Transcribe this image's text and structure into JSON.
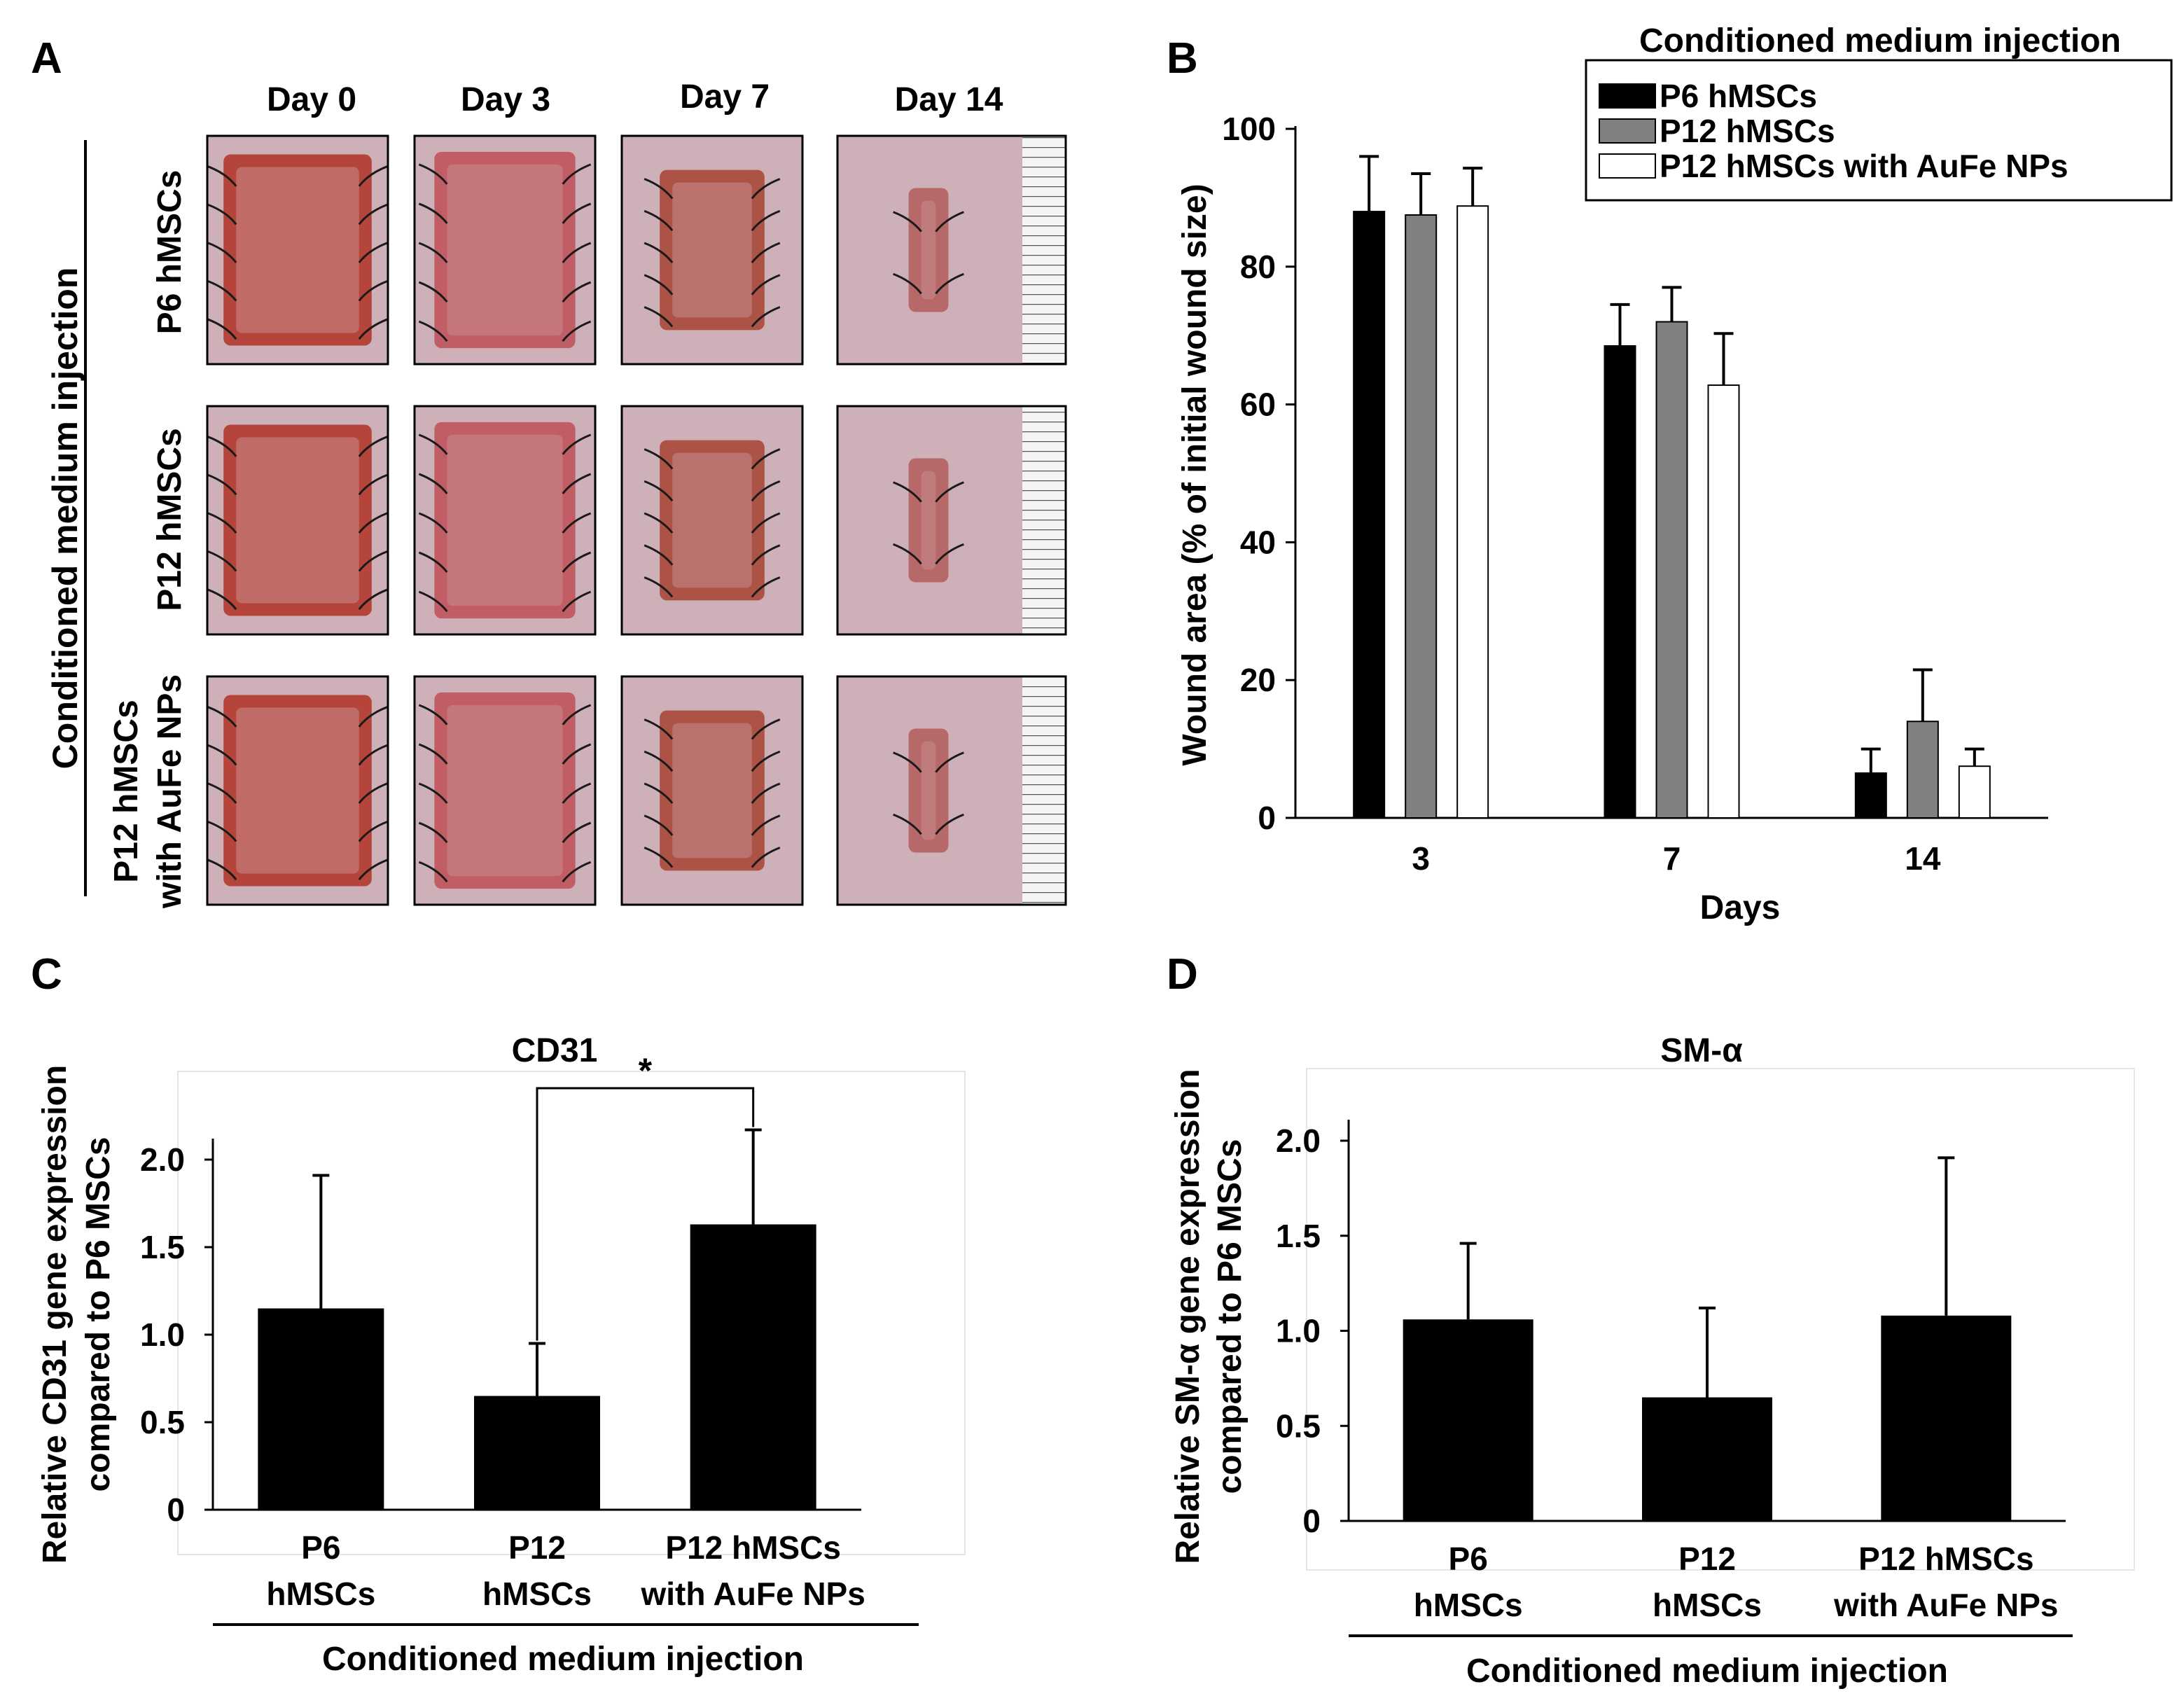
{
  "panel_labels": {
    "a": "A",
    "b": "B",
    "c": "C",
    "d": "D"
  },
  "panel_a": {
    "columns": [
      "Day 0",
      "Day 3",
      "Day 7",
      "Day 14"
    ],
    "rows": [
      {
        "lines": [
          "P6 hMSCs"
        ]
      },
      {
        "lines": [
          "P12 hMSCs"
        ]
      },
      {
        "lines": [
          "P12 hMSCs",
          "with  AuFe NPs"
        ]
      }
    ],
    "group_label": "Conditioned medium injection"
  },
  "colors": {
    "black": "#000000",
    "gray": "#808080",
    "white": "#ffffff",
    "tissue": "#b23a2e",
    "skin": "#cdb0b8",
    "suture": "#1a1a1a"
  },
  "chart_data": [
    {
      "id": "B",
      "type": "bar",
      "title": "Conditioned medium injection",
      "xlabel": "Days",
      "ylabel": "Wound area (% of initial wound size)",
      "categories": [
        "3",
        "7",
        "14"
      ],
      "ylim": [
        0,
        100
      ],
      "yticks": [
        "0",
        "20",
        "40",
        "60",
        "80",
        "100"
      ],
      "legend_position": "top-right",
      "series": [
        {
          "name": "P6 hMSCs",
          "color": "#000000",
          "values": [
            88,
            68.5,
            6.5
          ],
          "errors": [
            8,
            6,
            3.5
          ]
        },
        {
          "name": "P12 hMSCs",
          "color": "#808080",
          "values": [
            87.5,
            72,
            14
          ],
          "errors": [
            6,
            5,
            7.5
          ]
        },
        {
          "name": "P12 hMSCs with AuFe NPs",
          "color": "#ffffff",
          "values": [
            88.8,
            62.8,
            7.5
          ],
          "errors": [
            5.5,
            7.5,
            2.5
          ]
        }
      ]
    },
    {
      "id": "C",
      "type": "bar",
      "title": "CD31",
      "ylabel_lines": [
        "Relative CD31 gene expression",
        "compared to P6 MSCs"
      ],
      "categories": [
        [
          "P6",
          "hMSCs"
        ],
        [
          "P12",
          "hMSCs"
        ],
        [
          "P12 hMSCs",
          "with AuFe NPs"
        ]
      ],
      "values": [
        1.15,
        0.65,
        1.63
      ],
      "errors": [
        0.76,
        0.3,
        0.54
      ],
      "ylim": [
        0,
        2.0
      ],
      "yticks": [
        "0",
        "0.5",
        "1.0",
        "1.5",
        "2.0"
      ],
      "group_label": "Conditioned medium injection",
      "significance": {
        "label": "*",
        "from": 1,
        "to": 2
      }
    },
    {
      "id": "D",
      "type": "bar",
      "title": "SM-α",
      "ylabel_lines": [
        "Relative SM-α gene expression",
        "compared to P6 MSCs"
      ],
      "categories": [
        [
          "P6",
          "hMSCs"
        ],
        [
          "P12",
          "hMSCs"
        ],
        [
          "P12 hMSCs",
          "with AuFe NPs"
        ]
      ],
      "values": [
        1.06,
        0.65,
        1.08
      ],
      "errors": [
        0.4,
        0.47,
        0.83
      ],
      "ylim": [
        0,
        2.0
      ],
      "yticks": [
        "0",
        "0.5",
        "1.0",
        "1.5",
        "2.0"
      ],
      "group_label": "Conditioned medium injection"
    }
  ]
}
